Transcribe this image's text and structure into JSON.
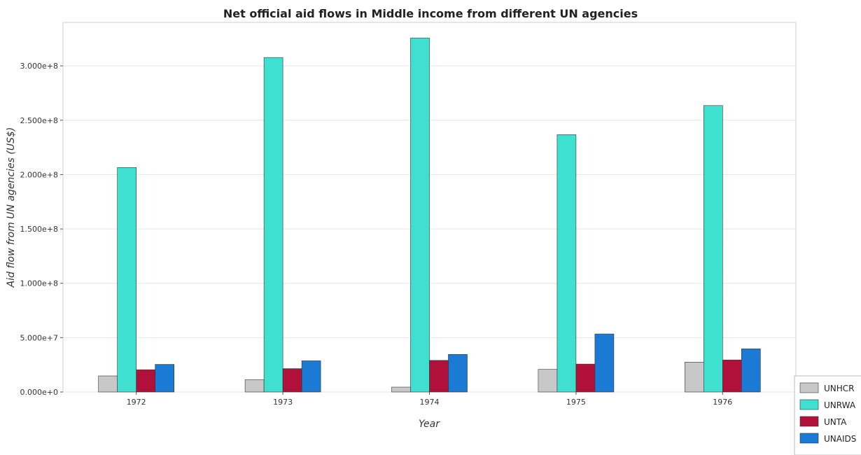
{
  "chart_data": {
    "type": "bar",
    "title": "Net official aid flows in Middle income from different UN agencies",
    "xlabel": "Year",
    "ylabel": "Aid flow from UN agencies (US$)",
    "categories": [
      "1972",
      "1973",
      "1974",
      "1975",
      "1976"
    ],
    "ylim": [
      0,
      340000000
    ],
    "yticks": [
      0,
      50000000,
      100000000,
      150000000,
      200000000,
      250000000,
      300000000
    ],
    "ytick_labels": [
      "0.000e+0",
      "5.000e+7",
      "1.000e+8",
      "1.500e+8",
      "2.000e+8",
      "2.500e+8",
      "3.000e+8"
    ],
    "grid": true,
    "legend_position": "bottom-right",
    "series": [
      {
        "name": "UNHCR",
        "color": "#c8c8c8",
        "values": [
          14800000,
          11300000,
          4500000,
          20800000,
          27500000
        ]
      },
      {
        "name": "UNRWA",
        "color": "#40e0d0",
        "values": [
          206500000,
          307700000,
          325700000,
          236700000,
          263500000
        ]
      },
      {
        "name": "UNTA",
        "color": "#b0103a",
        "values": [
          20500000,
          21500000,
          29100000,
          25700000,
          29500000
        ]
      },
      {
        "name": "UNAIDS",
        "color": "#1a7ad4",
        "values": [
          25400000,
          28700000,
          34600000,
          53400000,
          39700000
        ]
      }
    ]
  }
}
